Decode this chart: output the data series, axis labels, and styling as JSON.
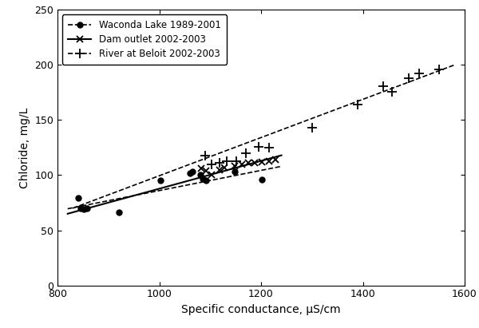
{
  "title": "",
  "xlabel": "Specific conductance, μS/cm",
  "ylabel": "Chloride, mg/L",
  "xlim": [
    800,
    1600
  ],
  "ylim": [
    0,
    250
  ],
  "xticks": [
    800,
    1000,
    1200,
    1400,
    1600
  ],
  "yticks": [
    0,
    50,
    100,
    150,
    200,
    250
  ],
  "waconda_x": [
    840,
    845,
    852,
    858,
    920,
    1003,
    1060,
    1065,
    1080,
    1085,
    1092,
    1148,
    1202
  ],
  "waconda_y": [
    79,
    70,
    69,
    70,
    66,
    95,
    102,
    103,
    100,
    97,
    95,
    103,
    96
  ],
  "waconda_line_x": [
    820,
    1240
  ],
  "waconda_line_y": [
    69.5,
    108
  ],
  "dam_x": [
    1082,
    1092,
    1102,
    1118,
    1128,
    1148,
    1162,
    1175,
    1188,
    1202,
    1215,
    1228
  ],
  "dam_y": [
    106,
    104,
    100,
    105,
    107,
    108,
    110,
    111,
    111,
    112,
    113,
    114
  ],
  "dam_line_x": [
    820,
    1240
  ],
  "dam_line_y": [
    65,
    118
  ],
  "beloit_x": [
    1090,
    1102,
    1118,
    1132,
    1152,
    1170,
    1195,
    1215,
    1300,
    1390,
    1440,
    1458,
    1490,
    1510,
    1550
  ],
  "beloit_y": [
    118,
    110,
    111,
    113,
    113,
    120,
    126,
    125,
    143,
    164,
    181,
    176,
    188,
    192,
    196
  ],
  "beloit_line_x": [
    830,
    1580
  ],
  "beloit_line_y": [
    70,
    200
  ],
  "bg_color": "#ffffff",
  "legend_labels": [
    "Waconda Lake 1989-2001",
    "Dam outlet 2002-2003",
    "River at Beloit 2002-2003"
  ]
}
